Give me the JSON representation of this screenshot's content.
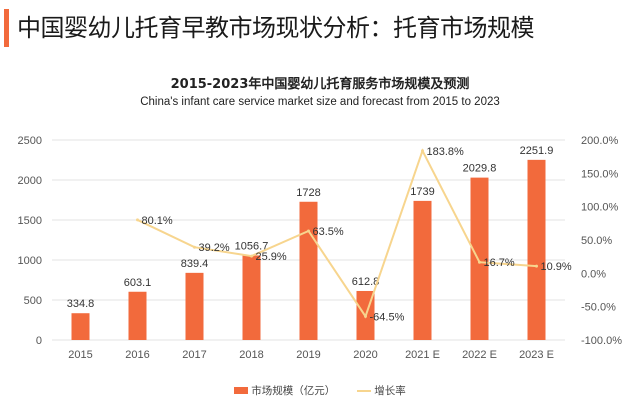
{
  "header": {
    "title": "中国婴幼儿托育早教市场现状分析：托育市场规模",
    "accent_color": "#f26a3c"
  },
  "chart_data": {
    "type": "bar+line",
    "title": "2015-2023年中国婴幼儿托育服务市场规模及预测",
    "subtitle": "China's infant care service market size and forecast from 2015 to 2023",
    "categories": [
      "2015",
      "2016",
      "2017",
      "2018",
      "2019",
      "2020",
      "2021 E",
      "2022 E",
      "2023 E"
    ],
    "series": [
      {
        "name": "市场规模（亿元）",
        "type": "bar",
        "axis": "left",
        "color": "#f26a3c",
        "values": [
          334.8,
          603.1,
          839.4,
          1056.7,
          1728,
          612.8,
          1739,
          2029.8,
          2251.9
        ],
        "labels": [
          "334.8",
          "603.1",
          "839.4",
          "1056.7",
          "1728",
          "612.8",
          "1739",
          "2029.8",
          "2251.9"
        ]
      },
      {
        "name": "增长率",
        "type": "line",
        "axis": "right",
        "color": "#f7d58e",
        "values": [
          null,
          80.1,
          39.2,
          25.9,
          63.5,
          -64.5,
          183.8,
          16.7,
          10.9
        ],
        "labels": [
          "",
          "80.1%",
          "39.2%",
          "25.9%",
          "63.5%",
          "-64.5%",
          "183.8%",
          "16.7%",
          "10.9%"
        ]
      }
    ],
    "y_left": {
      "min": 0,
      "max": 2500,
      "ticks": [
        "0",
        "500",
        "1000",
        "1500",
        "2000",
        "2500"
      ]
    },
    "y_right": {
      "min": -100,
      "max": 200,
      "ticks": [
        "-100.0%",
        "-50.0%",
        "0.0%",
        "50.0%",
        "100.0%",
        "150.0%",
        "200.0%"
      ]
    },
    "grid": true,
    "legend_position": "bottom"
  }
}
